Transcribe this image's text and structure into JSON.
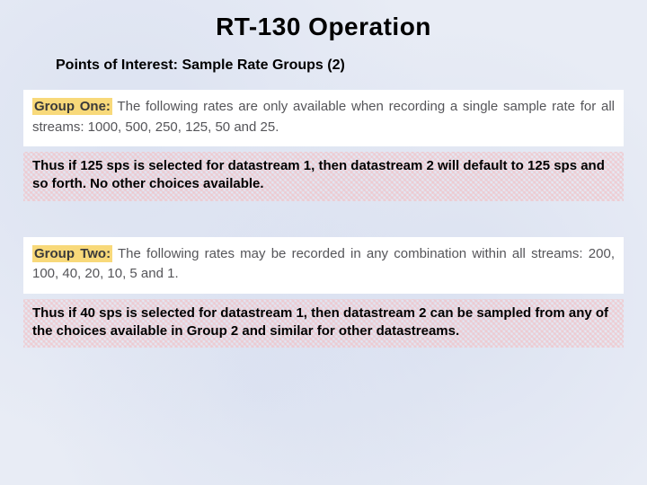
{
  "title": "RT-130 Operation",
  "subtitle": "Points of Interest:  Sample Rate Groups (2)",
  "group1": {
    "label": "Group One:",
    "text": " The following rates are only available when recording a single sample rate for all streams: 1000, 500, 250, 125, 50 and 25."
  },
  "explain1": "Thus if 125 sps is selected for datastream 1, then datastream 2 will default to 125 sps and so forth.  No other choices available.",
  "group2": {
    "label": "Group Two:",
    "text": " The following rates may be recorded in any combination within all streams: 200, 100, 40, 20, 10, 5 and 1."
  },
  "explain2": "Thus if 40 sps is selected for datastream 1, then datastream 2 can be sampled from any of the choices available in Group 2 and similar for other datastreams.",
  "colors": {
    "background": "#e8ecf5",
    "highlight": "#f8d97a",
    "white_block_text": "#555559",
    "pink_pattern": "#f0c3c8"
  }
}
